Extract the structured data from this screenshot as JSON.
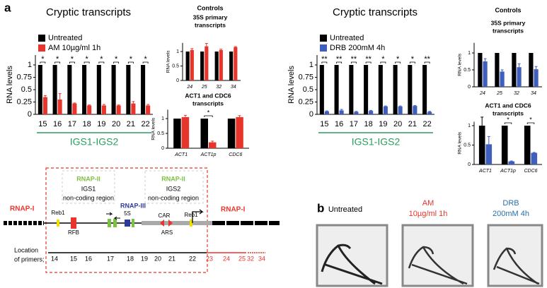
{
  "panels": {
    "a": "a",
    "b": "b"
  },
  "controls_titles": [
    "Controls",
    "Controls"
  ],
  "chart_data": [
    {
      "type": "bar",
      "title": "Cryptic transcripts",
      "ylabel": "RNA levels",
      "categories": [
        "15",
        "16",
        "17",
        "18",
        "19",
        "20",
        "21",
        "22"
      ],
      "series": [
        {
          "name": "Untreated",
          "color": "#000000",
          "values": [
            1,
            1,
            1,
            1,
            1,
            1,
            1,
            1
          ],
          "errors": [
            0,
            0,
            0,
            0,
            0,
            0,
            0,
            0
          ]
        },
        {
          "name": "AM 10µg/ml 1h",
          "color": "#e8352b",
          "values": [
            0.35,
            0.3,
            0.22,
            0.18,
            0.18,
            0.18,
            0.22,
            0.18
          ],
          "errors": [
            0.03,
            0.12,
            0.01,
            0.01,
            0.02,
            0.01,
            0.04,
            0.02
          ]
        }
      ],
      "ylim": [
        0,
        1.2
      ],
      "yticks": [
        0,
        0.25,
        0.5,
        0.75,
        1
      ],
      "significance": [
        "*",
        "*",
        "*",
        "*",
        "*",
        "*",
        "*",
        "*"
      ],
      "group_label": "IGS1-IGS2",
      "legend": "upper left"
    },
    {
      "type": "bar",
      "title": [
        "35S primary",
        "transcripts"
      ],
      "ylabel": "RNA levels",
      "categories": [
        "24",
        "25",
        "32",
        "34"
      ],
      "series": [
        {
          "color": "#000000",
          "values": [
            1,
            1,
            1,
            1
          ],
          "errors": [
            0,
            0,
            0,
            0
          ]
        },
        {
          "color": "#e8352b",
          "values": [
            1.05,
            1.18,
            1.05,
            1.15
          ],
          "errors": [
            0.05,
            0.1,
            0.03,
            0.02
          ]
        }
      ],
      "ylim": [
        0,
        1.3
      ],
      "yticks": [
        0,
        0.5,
        1
      ]
    },
    {
      "type": "bar",
      "title": [
        "ACT1 and CDC6",
        "transcripts"
      ],
      "ylabel": "RNA levels",
      "categories": [
        "ACT1",
        "ACT1p",
        "CDC6"
      ],
      "series": [
        {
          "color": "#000000",
          "values": [
            1,
            1,
            1
          ],
          "errors": [
            0,
            0,
            0
          ]
        },
        {
          "color": "#e8352b",
          "values": [
            1.05,
            0.2,
            1.05
          ],
          "errors": [
            0.06,
            0.04,
            0.05
          ]
        }
      ],
      "ylim": [
        0,
        1.3
      ],
      "yticks": [
        0,
        0.5,
        1
      ],
      "significance": [
        null,
        "*",
        null
      ]
    },
    {
      "type": "bar",
      "title": "Cryptic transcripts",
      "ylabel": "RNA levels",
      "categories": [
        "15",
        "16",
        "17",
        "18",
        "19",
        "20",
        "21",
        "22"
      ],
      "series": [
        {
          "name": "Untreated",
          "color": "#000000",
          "values": [
            1,
            1,
            1,
            1,
            1,
            1,
            1,
            1
          ],
          "errors": [
            0,
            0,
            0,
            0,
            0,
            0,
            0,
            0
          ]
        },
        {
          "name": "DRB 200mM 4h",
          "color": "#3f5fbf",
          "values": [
            0.06,
            0.08,
            0.05,
            0.07,
            0.16,
            0.16,
            0.17,
            0.05
          ],
          "errors": [
            0.01,
            0.02,
            0.01,
            0.01,
            0.01,
            0.01,
            0.01,
            0.01
          ]
        }
      ],
      "ylim": [
        0,
        1.2
      ],
      "yticks": [
        0,
        0.25,
        0.5,
        0.75,
        1
      ],
      "significance": [
        "**",
        "**",
        "**",
        "**",
        "*",
        "*",
        "*",
        "**"
      ],
      "group_label": "IGS1-IGS2",
      "legend": "upper left"
    },
    {
      "type": "bar",
      "title": [
        "35S primary",
        "transcripts"
      ],
      "ylabel": "RNA levels",
      "categories": [
        "24",
        "25",
        "32",
        "34"
      ],
      "series": [
        {
          "color": "#000000",
          "values": [
            1,
            1,
            1,
            1
          ],
          "errors": [
            0,
            0,
            0,
            0
          ]
        },
        {
          "color": "#3f5fbf",
          "values": [
            0.75,
            0.45,
            0.58,
            0.52
          ],
          "errors": [
            0.08,
            0.05,
            0.1,
            0.08
          ]
        }
      ],
      "ylim": [
        0,
        1.3
      ],
      "yticks": [
        0,
        0.5,
        1
      ]
    },
    {
      "type": "bar",
      "title": [
        "ACT1 and CDC6",
        "transcripts"
      ],
      "ylabel": "RNA levels",
      "categories": [
        "ACT1",
        "ACT1p",
        "CDC6"
      ],
      "series": [
        {
          "color": "#000000",
          "values": [
            1,
            1,
            1
          ],
          "errors": [
            0.22,
            0,
            0
          ]
        },
        {
          "color": "#3f5fbf",
          "values": [
            0.52,
            0.08,
            0.3
          ],
          "errors": [
            0.2,
            0.01,
            0.01
          ]
        }
      ],
      "ylim": [
        0,
        1.1
      ],
      "yticks": [
        0,
        0.5,
        1
      ],
      "significance": [
        null,
        "*",
        "*"
      ]
    }
  ],
  "diagram": {
    "rnap1_left": "RNAP-I",
    "rnap2_left": "RNAP-II",
    "igs1": "IGS1",
    "igs1_region": "non-coding region",
    "rnap3": "RNAP-III",
    "rnap2_right": "RNAP-II",
    "igs2": "IGS2",
    "igs2_region": "non-coding region",
    "reb1_left": "Reb1",
    "five_s": "5S",
    "car": "CAR",
    "reb1_right": "Reb1",
    "rnap1_right": "RNAP-I",
    "rfb": "RFB",
    "ars": "ARS",
    "location": [
      "Location",
      "of primers;"
    ],
    "primers": [
      "14",
      "15",
      "16",
      "17",
      "18",
      "19",
      "20",
      "21",
      "22",
      "23",
      "24",
      "25",
      "32",
      "34"
    ]
  },
  "gel": {
    "lanes": [
      [
        "Untreated"
      ],
      [
        "AM",
        "10µg/ml 1h"
      ],
      [
        "DRB",
        "200mM 4h"
      ]
    ]
  }
}
